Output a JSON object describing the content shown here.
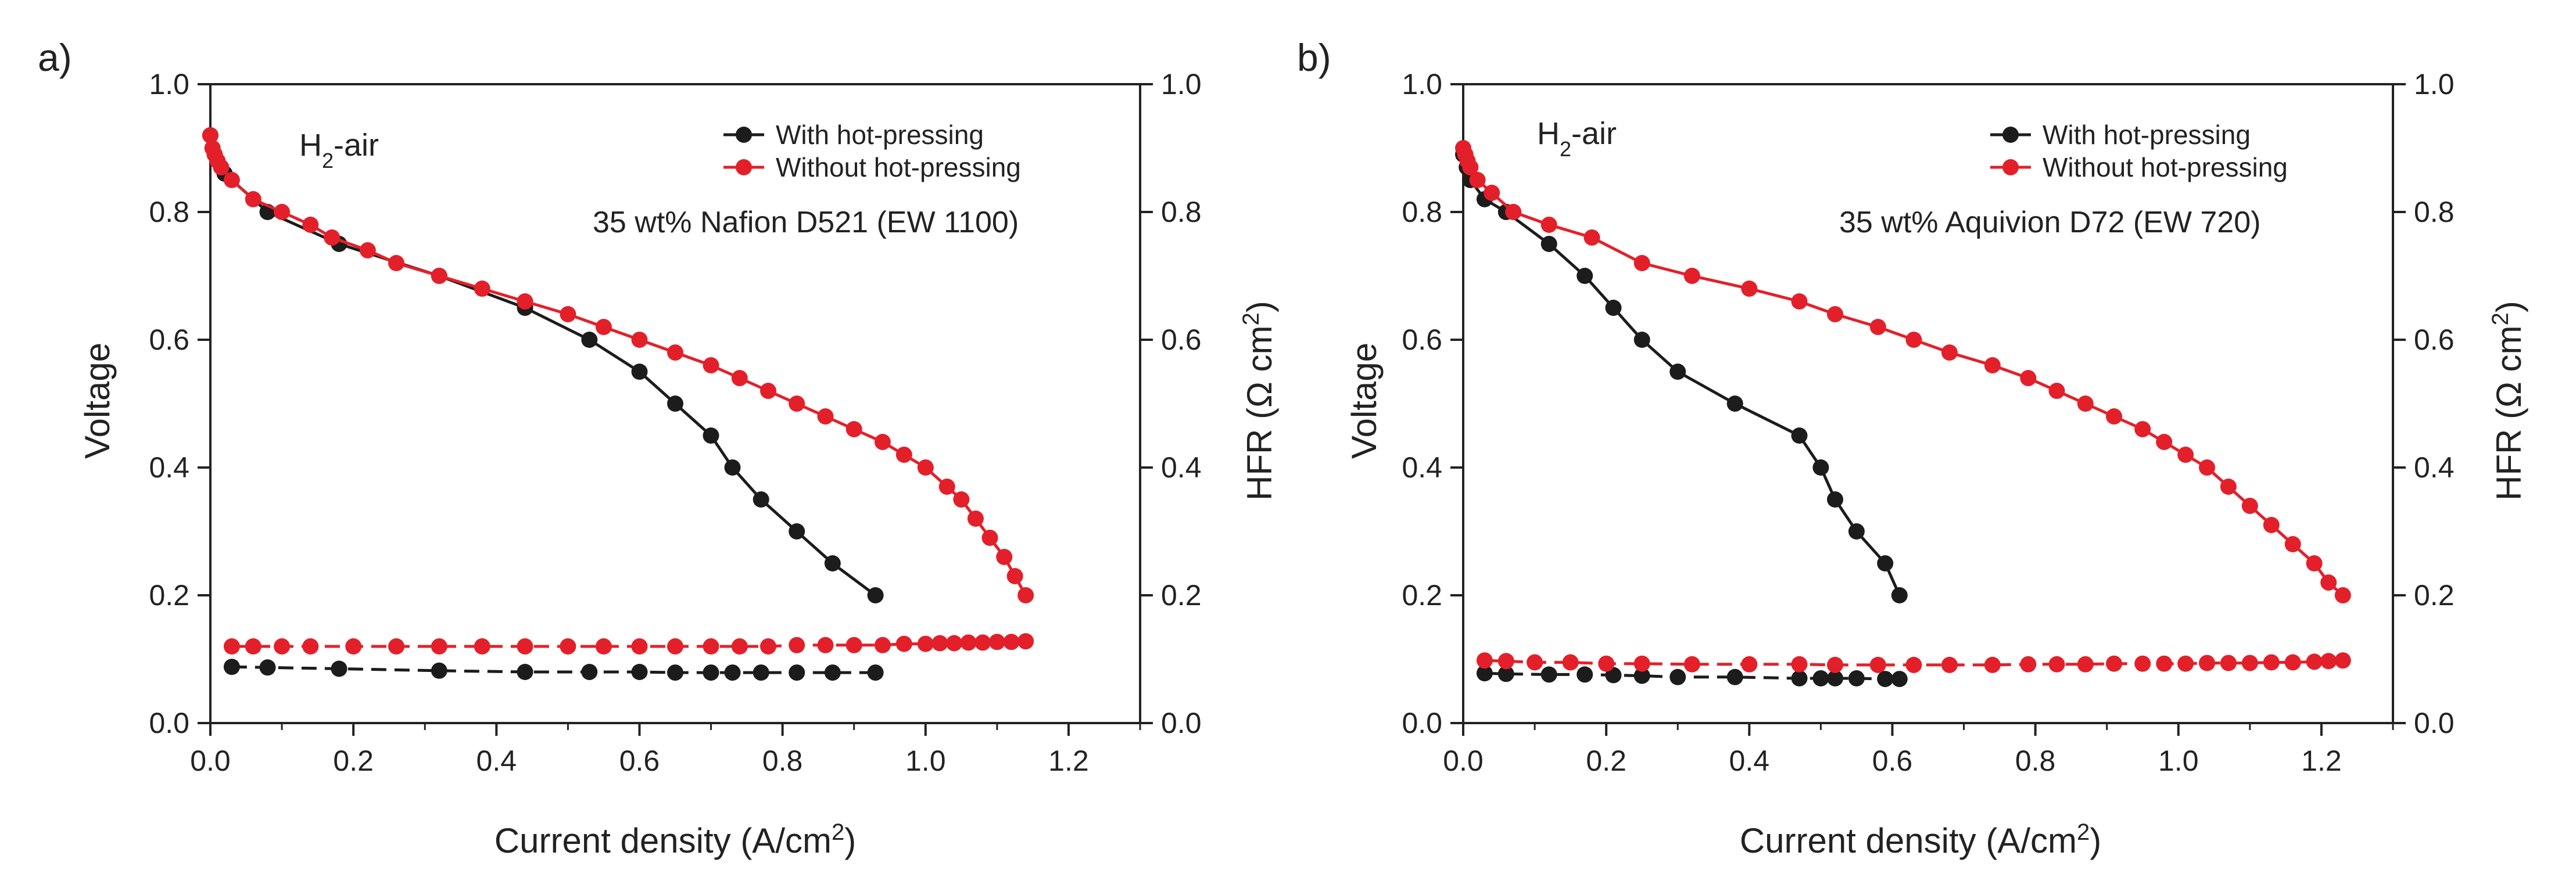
{
  "colors": {
    "black_series": "#1c1c1c",
    "red_series": "#e3202a",
    "axis": "#222222"
  },
  "chart_data": [
    {
      "type": "line",
      "panel_label": "a)",
      "annotation_gas": {
        "main": "H",
        "sub": "2",
        "rest": "-air"
      },
      "annotation_ionomer": "35 wt% Nafion D521 (EW 1100)",
      "xlabel": {
        "main": "Current density (A/cm",
        "sup": "2",
        "end": ")"
      },
      "ylabel": "Voltage",
      "y2label": {
        "main": "HFR (Ω cm",
        "sup": "2",
        "end": ")"
      },
      "xlim": [
        0,
        1.3
      ],
      "ylim": [
        0,
        1.0
      ],
      "y2lim": [
        0,
        1.0
      ],
      "xticks": [
        "0.0",
        "0.2",
        "0.4",
        "0.6",
        "0.8",
        "1.0",
        "1.2"
      ],
      "yticks": [
        "0.0",
        "0.2",
        "0.4",
        "0.6",
        "0.8",
        "1.0"
      ],
      "y2ticks": [
        "0.0",
        "0.2",
        "0.4",
        "0.6",
        "0.8",
        "1.0"
      ],
      "legend": [
        "With hot-pressing",
        "Without hot-pressing"
      ],
      "legend_position": "top-right",
      "series": [
        {
          "name": "With hot-pressing",
          "kind": "voltage",
          "color": "black",
          "dashed": false,
          "x": [
            0.0,
            0.02,
            0.08,
            0.18,
            0.32,
            0.44,
            0.53,
            0.6,
            0.65,
            0.7,
            0.73,
            0.77,
            0.82,
            0.87,
            0.93
          ],
          "y": [
            0.92,
            0.86,
            0.8,
            0.75,
            0.7,
            0.65,
            0.6,
            0.55,
            0.5,
            0.45,
            0.4,
            0.35,
            0.3,
            0.25,
            0.2
          ]
        },
        {
          "name": "Without hot-pressing",
          "kind": "voltage",
          "color": "red",
          "dashed": false,
          "x": [
            0.0,
            0.003,
            0.006,
            0.01,
            0.015,
            0.03,
            0.06,
            0.1,
            0.14,
            0.17,
            0.22,
            0.26,
            0.32,
            0.38,
            0.44,
            0.5,
            0.55,
            0.6,
            0.65,
            0.7,
            0.74,
            0.78,
            0.82,
            0.86,
            0.9,
            0.94,
            0.97,
            1.0,
            1.03,
            1.05,
            1.07,
            1.09,
            1.11,
            1.125,
            1.14
          ],
          "y": [
            0.92,
            0.9,
            0.89,
            0.88,
            0.87,
            0.85,
            0.82,
            0.8,
            0.78,
            0.76,
            0.74,
            0.72,
            0.7,
            0.68,
            0.66,
            0.64,
            0.62,
            0.6,
            0.58,
            0.56,
            0.54,
            0.52,
            0.5,
            0.48,
            0.46,
            0.44,
            0.42,
            0.4,
            0.37,
            0.35,
            0.32,
            0.29,
            0.26,
            0.23,
            0.2
          ]
        },
        {
          "name": "With hot-pressing",
          "kind": "HFR",
          "color": "black",
          "dashed": true,
          "x": [
            0.03,
            0.08,
            0.18,
            0.32,
            0.44,
            0.53,
            0.6,
            0.65,
            0.7,
            0.73,
            0.77,
            0.82,
            0.87,
            0.93
          ],
          "y": [
            0.088,
            0.087,
            0.085,
            0.082,
            0.08,
            0.08,
            0.08,
            0.079,
            0.079,
            0.079,
            0.079,
            0.079,
            0.079,
            0.079
          ]
        },
        {
          "name": "Without hot-pressing",
          "kind": "HFR",
          "color": "red",
          "dashed": true,
          "x": [
            0.03,
            0.06,
            0.1,
            0.14,
            0.2,
            0.26,
            0.32,
            0.38,
            0.44,
            0.5,
            0.55,
            0.6,
            0.65,
            0.7,
            0.74,
            0.78,
            0.82,
            0.86,
            0.9,
            0.94,
            0.97,
            1.0,
            1.02,
            1.04,
            1.06,
            1.08,
            1.1,
            1.12,
            1.14
          ],
          "y": [
            0.12,
            0.12,
            0.12,
            0.12,
            0.12,
            0.12,
            0.12,
            0.12,
            0.12,
            0.12,
            0.12,
            0.12,
            0.12,
            0.12,
            0.12,
            0.12,
            0.122,
            0.122,
            0.122,
            0.122,
            0.124,
            0.124,
            0.125,
            0.125,
            0.126,
            0.126,
            0.127,
            0.127,
            0.128
          ]
        }
      ]
    },
    {
      "type": "line",
      "panel_label": "b)",
      "annotation_gas": {
        "main": "H",
        "sub": "2",
        "rest": "-air"
      },
      "annotation_ionomer": "35 wt% Aquivion D72 (EW 720)",
      "xlabel": {
        "main": "Current density (A/cm",
        "sup": "2",
        "end": ")"
      },
      "ylabel": "Voltage",
      "y2label": {
        "main": "HFR (Ω cm",
        "sup": "2",
        "end": ")"
      },
      "xlim": [
        0,
        1.3
      ],
      "ylim": [
        0,
        1.0
      ],
      "y2lim": [
        0,
        1.0
      ],
      "xticks": [
        "0.0",
        "0.2",
        "0.4",
        "0.6",
        "0.8",
        "1.0",
        "1.2"
      ],
      "yticks": [
        "0.0",
        "0.2",
        "0.4",
        "0.6",
        "0.8",
        "1.0"
      ],
      "y2ticks": [
        "0.0",
        "0.2",
        "0.4",
        "0.6",
        "0.8",
        "1.0"
      ],
      "legend": [
        "With hot-pressing",
        "Without hot-pressing"
      ],
      "legend_position": "top-right",
      "series": [
        {
          "name": "With hot-pressing",
          "kind": "voltage",
          "color": "black",
          "dashed": false,
          "x": [
            0.0,
            0.005,
            0.01,
            0.03,
            0.06,
            0.12,
            0.17,
            0.21,
            0.25,
            0.3,
            0.38,
            0.47,
            0.5,
            0.52,
            0.55,
            0.59,
            0.61
          ],
          "y": [
            0.89,
            0.87,
            0.85,
            0.82,
            0.8,
            0.75,
            0.7,
            0.65,
            0.6,
            0.55,
            0.5,
            0.45,
            0.4,
            0.35,
            0.3,
            0.25,
            0.2
          ]
        },
        {
          "name": "Without hot-pressing",
          "kind": "voltage",
          "color": "red",
          "dashed": false,
          "x": [
            0.0,
            0.003,
            0.006,
            0.01,
            0.02,
            0.04,
            0.07,
            0.12,
            0.18,
            0.25,
            0.32,
            0.4,
            0.47,
            0.52,
            0.58,
            0.63,
            0.68,
            0.74,
            0.79,
            0.83,
            0.87,
            0.91,
            0.95,
            0.98,
            1.01,
            1.04,
            1.07,
            1.1,
            1.13,
            1.16,
            1.19,
            1.21,
            1.23
          ],
          "y": [
            0.9,
            0.89,
            0.88,
            0.87,
            0.85,
            0.83,
            0.8,
            0.78,
            0.76,
            0.72,
            0.7,
            0.68,
            0.66,
            0.64,
            0.62,
            0.6,
            0.58,
            0.56,
            0.54,
            0.52,
            0.5,
            0.48,
            0.46,
            0.44,
            0.42,
            0.4,
            0.37,
            0.34,
            0.31,
            0.28,
            0.25,
            0.22,
            0.2
          ]
        },
        {
          "name": "With hot-pressing",
          "kind": "HFR",
          "color": "black",
          "dashed": true,
          "x": [
            0.03,
            0.06,
            0.12,
            0.17,
            0.21,
            0.25,
            0.3,
            0.38,
            0.47,
            0.5,
            0.52,
            0.55,
            0.59,
            0.61
          ],
          "y": [
            0.078,
            0.077,
            0.076,
            0.076,
            0.075,
            0.074,
            0.072,
            0.072,
            0.07,
            0.07,
            0.07,
            0.07,
            0.069,
            0.069
          ]
        },
        {
          "name": "Without hot-pressing",
          "kind": "HFR",
          "color": "red",
          "dashed": true,
          "x": [
            0.03,
            0.06,
            0.1,
            0.15,
            0.2,
            0.25,
            0.32,
            0.4,
            0.47,
            0.52,
            0.58,
            0.63,
            0.68,
            0.74,
            0.79,
            0.83,
            0.87,
            0.91,
            0.95,
            0.98,
            1.01,
            1.04,
            1.07,
            1.1,
            1.13,
            1.16,
            1.19,
            1.21,
            1.23
          ],
          "y": [
            0.098,
            0.097,
            0.095,
            0.095,
            0.093,
            0.093,
            0.092,
            0.092,
            0.092,
            0.091,
            0.091,
            0.091,
            0.091,
            0.091,
            0.092,
            0.092,
            0.092,
            0.093,
            0.093,
            0.093,
            0.093,
            0.094,
            0.094,
            0.094,
            0.095,
            0.095,
            0.096,
            0.097,
            0.098
          ]
        }
      ]
    }
  ]
}
